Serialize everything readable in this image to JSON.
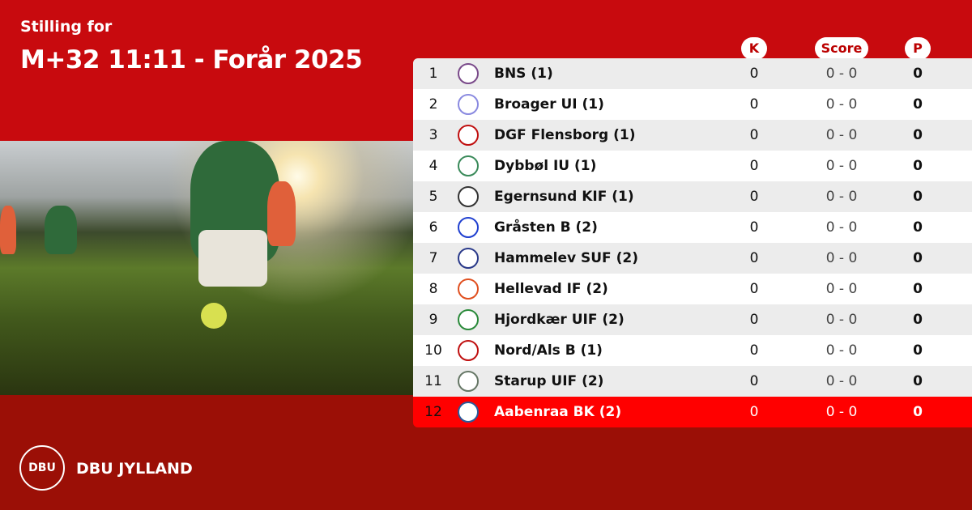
{
  "header": {
    "subtitle": "Stilling for",
    "title": "M+32 11:11 - Forår 2025"
  },
  "columns": {
    "k": "K",
    "score": "Score",
    "p": "P"
  },
  "rows": [
    {
      "rank": "1",
      "team": "BNS (1)",
      "k": "0",
      "score": "0 - 0",
      "p": "0",
      "logo_color": "#7a4a8a"
    },
    {
      "rank": "2",
      "team": "Broager UI (1)",
      "k": "0",
      "score": "0 - 0",
      "p": "0",
      "logo_color": "#8a8ae0"
    },
    {
      "rank": "3",
      "team": "DGF Flensborg (1)",
      "k": "0",
      "score": "0 - 0",
      "p": "0",
      "logo_color": "#c01010"
    },
    {
      "rank": "4",
      "team": "Dybbøl IU (1)",
      "k": "0",
      "score": "0 - 0",
      "p": "0",
      "logo_color": "#3a8a5a"
    },
    {
      "rank": "5",
      "team": "Egernsund KIF (1)",
      "k": "0",
      "score": "0 - 0",
      "p": "0",
      "logo_color": "#333333"
    },
    {
      "rank": "6",
      "team": "Gråsten B (2)",
      "k": "0",
      "score": "0 - 0",
      "p": "0",
      "logo_color": "#2040d0"
    },
    {
      "rank": "7",
      "team": "Hammelev SUF (2)",
      "k": "0",
      "score": "0 - 0",
      "p": "0",
      "logo_color": "#2a3a8a"
    },
    {
      "rank": "8",
      "team": "Hellevad IF (2)",
      "k": "0",
      "score": "0 - 0",
      "p": "0",
      "logo_color": "#e05020"
    },
    {
      "rank": "9",
      "team": "Hjordkær UIF (2)",
      "k": "0",
      "score": "0 - 0",
      "p": "0",
      "logo_color": "#2a8a3a"
    },
    {
      "rank": "10",
      "team": "Nord/Als B (1)",
      "k": "0",
      "score": "0 - 0",
      "p": "0",
      "logo_color": "#c01010"
    },
    {
      "rank": "11",
      "team": "Starup UIF (2)",
      "k": "0",
      "score": "0 - 0",
      "p": "0",
      "logo_color": "#667766"
    },
    {
      "rank": "12",
      "team": "Aabenraa BK (2)",
      "k": "0",
      "score": "0 - 0",
      "p": "0",
      "logo_color": "#2a5a9a",
      "highlighted": true
    }
  ],
  "footer": {
    "logo_text": "DBU",
    "org": "DBU JYLLAND"
  },
  "colors": {
    "header_red": "#c80a0e",
    "footer_red": "#9b0f06",
    "highlight": "#ff0000"
  }
}
